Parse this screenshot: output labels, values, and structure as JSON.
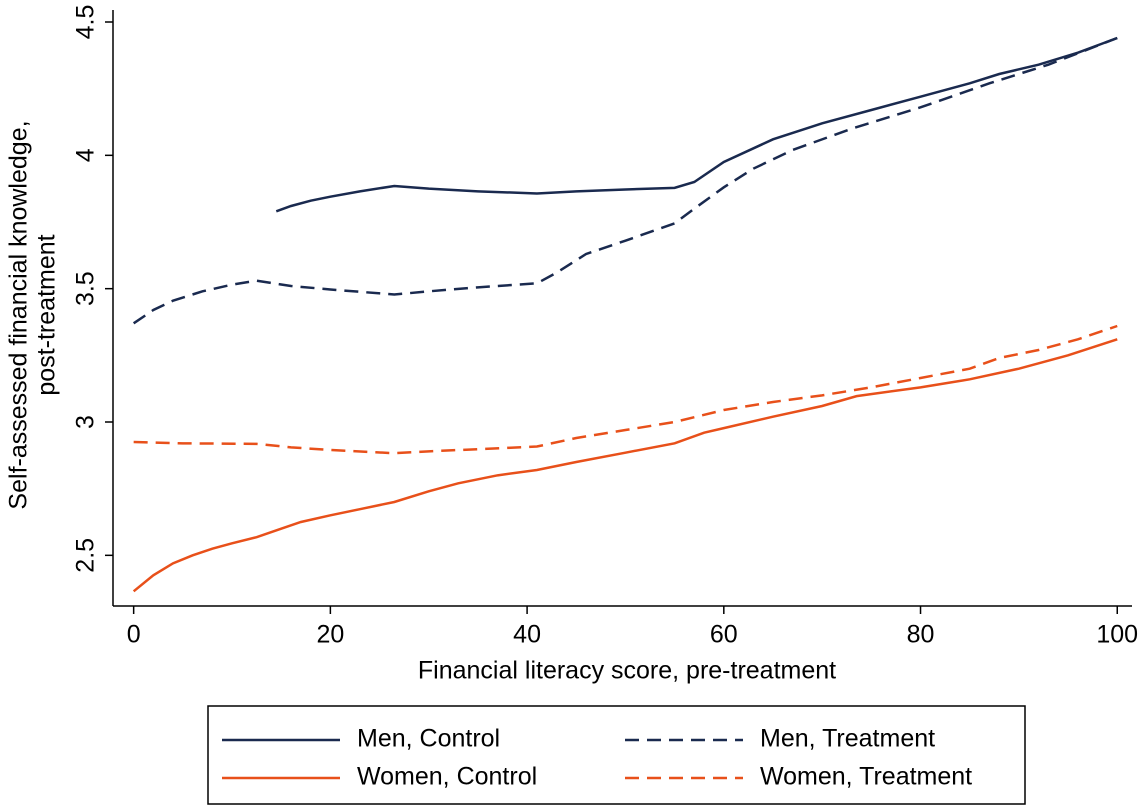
{
  "chart_data": {
    "type": "line",
    "xlabel": "Financial literacy score, pre-treatment",
    "ylabel": [
      "Self-assessed financial knowledge,",
      "post-treatment"
    ],
    "xlim": [
      -2.1,
      101.5
    ],
    "ylim": [
      2.31,
      4.545
    ],
    "xticks": [
      0,
      20,
      40,
      60,
      80,
      100
    ],
    "yticks": [
      2.5,
      3,
      3.5,
      4,
      4.5
    ],
    "grid": false,
    "legend": "bottom",
    "series": [
      {
        "name": "Men, Control",
        "color": "#1a2a4f",
        "dashed": false,
        "x": [
          14.5,
          16,
          18,
          20,
          23,
          26.5,
          30,
          35,
          41,
          45,
          50,
          55,
          57,
          60,
          65,
          70,
          75,
          80,
          85,
          88,
          92,
          96,
          100
        ],
        "values": [
          3.79,
          3.81,
          3.83,
          3.845,
          3.865,
          3.885,
          3.875,
          3.865,
          3.857,
          3.865,
          3.872,
          3.878,
          3.9,
          3.975,
          4.06,
          4.12,
          4.17,
          4.22,
          4.27,
          4.305,
          4.34,
          4.385,
          4.44
        ]
      },
      {
        "name": "Men, Treatment",
        "color": "#1a2a4f",
        "dashed": true,
        "x": [
          0,
          2,
          4,
          7,
          10,
          12.5,
          16,
          20,
          26.5,
          30,
          35,
          41,
          43,
          46,
          50,
          55,
          57,
          60,
          63,
          67,
          73,
          80,
          87,
          93,
          100
        ],
        "values": [
          3.37,
          3.42,
          3.455,
          3.49,
          3.515,
          3.53,
          3.51,
          3.497,
          3.478,
          3.49,
          3.505,
          3.52,
          3.56,
          3.63,
          3.68,
          3.745,
          3.8,
          3.88,
          3.95,
          4.02,
          4.1,
          4.18,
          4.27,
          4.34,
          4.44
        ]
      },
      {
        "name": "Women, Control",
        "color": "#e8501a",
        "dashed": false,
        "x": [
          0,
          2,
          4,
          6,
          8,
          10,
          12.5,
          15,
          17,
          20,
          23,
          26.5,
          30,
          33,
          37,
          41,
          45,
          50,
          55,
          58,
          60,
          65,
          70,
          73.5,
          80,
          85,
          90,
          95,
          100
        ],
        "values": [
          2.365,
          2.425,
          2.47,
          2.5,
          2.525,
          2.545,
          2.568,
          2.6,
          2.625,
          2.65,
          2.673,
          2.7,
          2.74,
          2.77,
          2.8,
          2.82,
          2.85,
          2.885,
          2.92,
          2.96,
          2.977,
          3.02,
          3.06,
          3.097,
          3.13,
          3.16,
          3.2,
          3.25,
          3.31
        ]
      },
      {
        "name": "Women, Treatment",
        "color": "#e8501a",
        "dashed": true,
        "x": [
          0,
          5,
          12.5,
          16,
          20,
          26.5,
          30,
          35,
          41,
          45,
          50,
          55,
          60,
          65,
          70,
          75,
          80,
          85,
          88,
          92,
          96,
          100
        ],
        "values": [
          2.925,
          2.92,
          2.918,
          2.905,
          2.895,
          2.883,
          2.89,
          2.898,
          2.908,
          2.94,
          2.97,
          3.0,
          3.045,
          3.075,
          3.1,
          3.13,
          3.165,
          3.2,
          3.24,
          3.27,
          3.31,
          3.36
        ]
      }
    ]
  }
}
